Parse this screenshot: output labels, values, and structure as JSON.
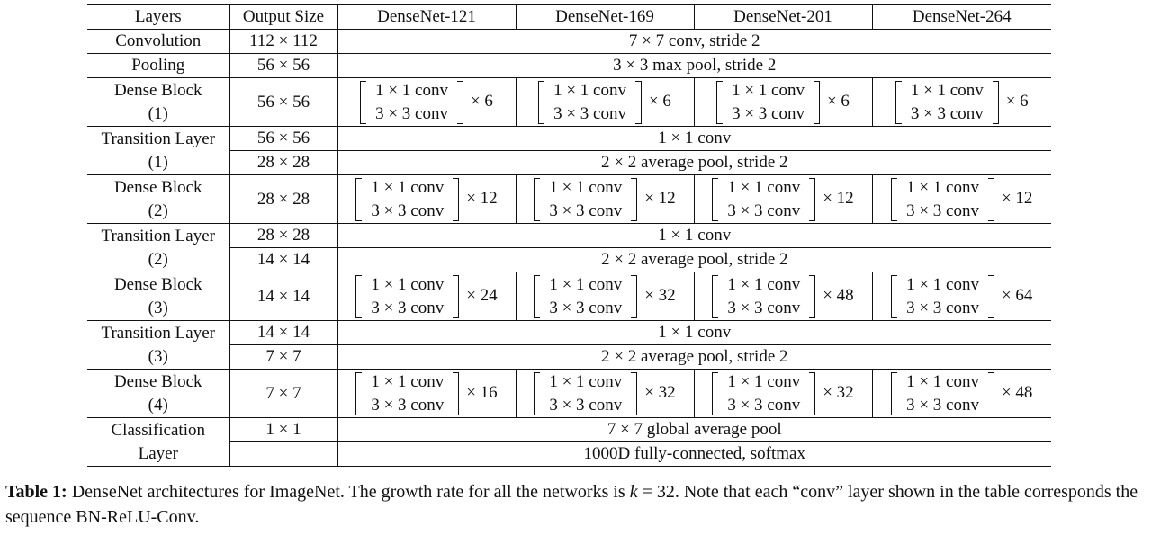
{
  "table": {
    "headers": [
      "Layers",
      "Output Size",
      "DenseNet-121",
      "DenseNet-169",
      "DenseNet-201",
      "DenseNet-264"
    ],
    "block_ops": [
      "1 × 1 conv",
      "3 × 3 conv"
    ],
    "rows": {
      "conv": {
        "layer": "Convolution",
        "size": "112 × 112",
        "spec": "7 × 7 conv, stride 2"
      },
      "pool": {
        "layer": "Pooling",
        "size": "56 × 56",
        "spec": "3 × 3 max pool, stride 2"
      },
      "db1": {
        "layer": [
          "Dense Block",
          "(1)"
        ],
        "size": "56 × 56",
        "reps": [
          "× 6",
          "× 6",
          "× 6",
          "× 6"
        ]
      },
      "tl1": {
        "layer": [
          "Transition Layer",
          "(1)"
        ],
        "size_a": "56 × 56",
        "spec_a": "1 × 1 conv",
        "size_b": "28 × 28",
        "spec_b": "2 × 2 average pool, stride 2"
      },
      "db2": {
        "layer": [
          "Dense Block",
          "(2)"
        ],
        "size": "28 × 28",
        "reps": [
          "× 12",
          "× 12",
          "× 12",
          "× 12"
        ]
      },
      "tl2": {
        "layer": [
          "Transition Layer",
          "(2)"
        ],
        "size_a": "28 × 28",
        "spec_a": "1 × 1 conv",
        "size_b": "14 × 14",
        "spec_b": "2 × 2 average pool, stride 2"
      },
      "db3": {
        "layer": [
          "Dense Block",
          "(3)"
        ],
        "size": "14 × 14",
        "reps": [
          "× 24",
          "× 32",
          "× 48",
          "× 64"
        ]
      },
      "tl3": {
        "layer": [
          "Transition Layer",
          "(3)"
        ],
        "size_a": "14 × 14",
        "spec_a": "1 × 1 conv",
        "size_b": "7 × 7",
        "spec_b": "2 × 2 average pool, stride 2"
      },
      "db4": {
        "layer": [
          "Dense Block",
          "(4)"
        ],
        "size": "7 × 7",
        "reps": [
          "× 16",
          "× 32",
          "× 32",
          "× 48"
        ]
      },
      "cls": {
        "layer": [
          "Classification",
          "Layer"
        ],
        "size_a": "1 × 1",
        "spec_a": "7 × 7 global average pool",
        "size_b": "",
        "spec_b": "1000D fully-connected, softmax"
      }
    }
  },
  "caption": {
    "label": "Table 1:",
    "text_before_k": "DenseNet architectures for ImageNet. The growth rate for all the networks is",
    "var": "k",
    "eq": "= 32.",
    "text_after": "Note that each “conv” layer shown in the table corresponds the sequence BN-ReLU-Conv."
  }
}
